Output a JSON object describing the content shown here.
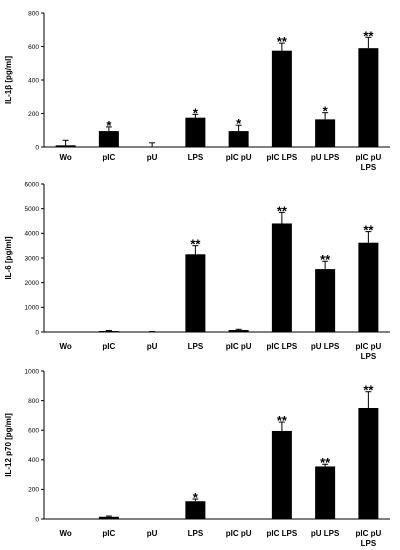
{
  "chart_data": [
    {
      "type": "bar",
      "ylabel": "IL-1β [pg/ml]",
      "ylim": [
        0,
        800
      ],
      "yticks": [
        0,
        200,
        400,
        600,
        800
      ],
      "categories": [
        [
          "Wo"
        ],
        [
          "pIC"
        ],
        [
          "pU"
        ],
        [
          "LPS"
        ],
        [
          "pIC pU"
        ],
        [
          "pIC LPS"
        ],
        [
          "pU LPS"
        ],
        [
          "pIC pU",
          "LPS"
        ]
      ],
      "values": [
        10,
        95,
        0,
        175,
        95,
        575,
        165,
        590
      ],
      "errors": [
        30,
        25,
        25,
        20,
        35,
        45,
        40,
        65
      ],
      "significance": [
        "",
        "*",
        "",
        "*",
        "*",
        "**",
        "*",
        "**"
      ],
      "bar_color": "#000000"
    },
    {
      "type": "bar",
      "ylabel": "IL-6 [pg/ml]",
      "ylim": [
        0,
        6000
      ],
      "yticks": [
        0,
        1000,
        2000,
        3000,
        4000,
        5000,
        6000
      ],
      "categories": [
        [
          "Wo"
        ],
        [
          "pIC"
        ],
        [
          "pU"
        ],
        [
          "LPS"
        ],
        [
          "pIC pU"
        ],
        [
          "pIC LPS"
        ],
        [
          "pU LPS"
        ],
        [
          "pIC pU",
          "LPS"
        ]
      ],
      "values": [
        10,
        40,
        10,
        3150,
        80,
        4400,
        2550,
        3620
      ],
      "errors": [
        0,
        20,
        10,
        350,
        30,
        450,
        320,
        450
      ],
      "significance": [
        "",
        "",
        "",
        "**",
        "",
        "**",
        "**",
        "**"
      ],
      "bar_color": "#000000"
    },
    {
      "type": "bar",
      "ylabel": "IL-12 p70 [pg/ml]",
      "ylim": [
        0,
        1000
      ],
      "yticks": [
        0,
        200,
        400,
        600,
        800,
        1000
      ],
      "categories": [
        [
          "Wo"
        ],
        [
          "pIC"
        ],
        [
          "pU"
        ],
        [
          "LPS"
        ],
        [
          "pIC pU"
        ],
        [
          "pIC LPS"
        ],
        [
          "pU LPS"
        ],
        [
          "pIC pU",
          "LPS"
        ]
      ],
      "values": [
        0,
        15,
        0,
        120,
        0,
        595,
        355,
        750
      ],
      "errors": [
        0,
        5,
        0,
        15,
        0,
        60,
        15,
        110
      ],
      "significance": [
        "",
        "",
        "",
        "*",
        "",
        "**",
        "**",
        "**"
      ],
      "bar_color": "#000000"
    }
  ]
}
